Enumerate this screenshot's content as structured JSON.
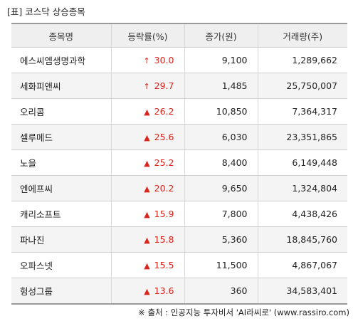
{
  "title": "[표] 코스닥 상승종목",
  "headers": [
    "종목명",
    "등락률(%)",
    "종가(원)",
    "거래량(주)"
  ],
  "rows": [
    {
      "name": "에스씨엠생명과학",
      "arrow": "↑",
      "rate": "30.0",
      "price": "9,100",
      "volume": "1,289,662"
    },
    {
      "name": "세화피앤씨",
      "arrow": "↑",
      "rate": "29.7",
      "price": "1,485",
      "volume": "25,750,007"
    },
    {
      "name": "오리콤",
      "arrow": "▲",
      "rate": "26.2",
      "price": "10,850",
      "volume": "7,364,317"
    },
    {
      "name": "셀루메드",
      "arrow": "▲",
      "rate": "25.6",
      "price": "6,030",
      "volume": "23,351,865"
    },
    {
      "name": "노을",
      "arrow": "▲",
      "rate": "25.2",
      "price": "8,400",
      "volume": "6,149,448"
    },
    {
      "name": "엔에프씨",
      "arrow": "▲",
      "rate": "20.2",
      "price": "9,650",
      "volume": "1,324,804"
    },
    {
      "name": "캐리소프트",
      "arrow": "▲",
      "rate": "15.9",
      "price": "7,800",
      "volume": "4,438,426"
    },
    {
      "name": "파나진",
      "arrow": "▲",
      "rate": "15.8",
      "price": "5,360",
      "volume": "18,845,760"
    },
    {
      "name": "오파스넷",
      "arrow": "▲",
      "rate": "15.5",
      "price": "11,500",
      "volume": "4,867,067"
    },
    {
      "name": "헝성그룹",
      "arrow": "▲",
      "rate": "13.6",
      "price": "360",
      "volume": "34,583,401"
    }
  ],
  "source": "※ 출처 : 인공지능 투자비서 'AI라씨로' (www.rassiro.com)",
  "colors": {
    "up": "#d9251d",
    "header_bg": "#efefef",
    "stripe_bg": "#f4f4f4"
  }
}
